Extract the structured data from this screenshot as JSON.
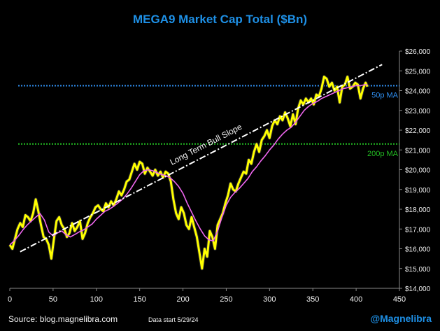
{
  "header": {
    "title": "MEGA9 Market Cap Total ($Bn)"
  },
  "footer": {
    "source": "Source: blog.magnelibra.com",
    "data_start": "Data start 5/29/24",
    "handle": "@Magnelibra"
  },
  "colors": {
    "background": "#000000",
    "price": "#ffff00",
    "price_stroke": "#2a2a2a",
    "ma50": "#ee66ee",
    "ma50_level": "#2f8ff0",
    "ma200_level": "#22bb22",
    "trend": "#ffffff",
    "axis": "#888888",
    "text": "#f2f2f2",
    "title": "#1e90e6"
  },
  "chart_data": {
    "type": "line",
    "title": "MEGA9 Market Cap Total ($Bn)",
    "xlim": [
      0,
      450
    ],
    "ylim": [
      14000,
      26000
    ],
    "x_ticks": [
      0,
      50,
      100,
      150,
      200,
      250,
      300,
      350,
      400,
      450
    ],
    "y_ticks": [
      14000,
      15000,
      16000,
      17000,
      18000,
      19000,
      20000,
      21000,
      22000,
      23000,
      24000,
      25000,
      26000
    ],
    "y_tick_labels": [
      "$14,000",
      "$15,000",
      "$16,000",
      "$17,000",
      "$18,000",
      "$19,000",
      "$20,000",
      "$21,000",
      "$22,000",
      "$23,000",
      "$24,000",
      "$25,000",
      "$26,000"
    ],
    "grid": false,
    "series": [
      {
        "x": [
          0,
          3,
          6,
          9,
          12,
          15,
          18,
          21,
          24,
          27,
          30,
          33,
          36,
          39,
          42,
          45,
          48,
          51,
          54,
          57,
          60,
          63,
          66,
          69,
          72,
          75,
          78,
          81,
          84,
          87,
          90,
          93,
          96,
          99,
          102,
          105,
          108,
          111,
          114,
          117,
          120,
          123,
          126,
          129,
          132,
          135,
          138,
          141,
          144,
          147,
          150,
          153,
          156,
          159,
          162,
          165,
          168,
          171,
          174,
          177,
          180,
          183,
          186,
          189,
          192,
          195,
          198,
          201,
          204,
          207,
          210,
          213,
          216,
          219,
          222,
          225,
          228,
          231,
          234,
          237,
          240,
          243,
          246,
          249,
          252,
          255,
          258,
          261,
          264,
          267,
          270,
          273,
          276,
          279,
          282,
          285,
          288,
          291,
          294,
          297,
          300,
          303,
          306,
          309,
          312,
          315,
          318,
          321,
          324,
          327,
          330,
          333,
          336,
          339,
          342,
          345,
          348,
          351,
          354,
          357,
          360,
          363,
          366,
          369,
          372,
          375,
          378,
          381,
          384,
          387,
          390,
          393,
          396,
          399,
          402,
          405,
          408,
          411,
          413
        ],
        "values": [
          16200,
          16000,
          16500,
          17000,
          17300,
          17100,
          17700,
          17600,
          17400,
          17800,
          18500,
          17900,
          17200,
          16600,
          16500,
          16200,
          15500,
          16500,
          17400,
          17600,
          17200,
          17000,
          16600,
          16800,
          17300,
          16900,
          17100,
          17400,
          16500,
          16800,
          17300,
          17600,
          17800,
          18100,
          18200,
          18000,
          17900,
          18300,
          18100,
          18400,
          18200,
          18500,
          18900,
          18700,
          19000,
          19400,
          19500,
          19900,
          20300,
          20000,
          20400,
          20300,
          19800,
          20100,
          19900,
          19700,
          20000,
          19700,
          19900,
          19600,
          19900,
          19800,
          19400,
          18500,
          17800,
          17500,
          18100,
          17800,
          17200,
          17000,
          17600,
          17100,
          16600,
          15800,
          15000,
          16000,
          15600,
          16900,
          16600,
          16000,
          17200,
          17500,
          17800,
          18300,
          18700,
          19300,
          19000,
          18900,
          19300,
          19600,
          19900,
          19800,
          20500,
          20300,
          20900,
          21300,
          20900,
          21500,
          21700,
          22000,
          21600,
          22200,
          22500,
          22300,
          22700,
          22500,
          22900,
          22600,
          22200,
          22800,
          22300,
          23100,
          23500,
          23300,
          23600,
          23400,
          23600,
          23300,
          23800,
          23700,
          24100,
          24700,
          24600,
          24200,
          24400,
          24000,
          24200,
          23400,
          24200,
          24300,
          24700,
          24100,
          24200,
          24400,
          24300,
          23600,
          24100,
          24400,
          24200
        ],
        "color": "#ffff00"
      },
      {
        "x": [
          0,
          5,
          10,
          15,
          20,
          25,
          30,
          35,
          40,
          45,
          50,
          55,
          60,
          65,
          70,
          75,
          80,
          85,
          90,
          95,
          100,
          105,
          110,
          115,
          120,
          125,
          130,
          135,
          140,
          145,
          150,
          155,
          160,
          165,
          170,
          175,
          180,
          185,
          190,
          195,
          200,
          205,
          210,
          215,
          220,
          225,
          230,
          235,
          240,
          245,
          250,
          255,
          260,
          265,
          270,
          275,
          280,
          285,
          290,
          295,
          300,
          305,
          310,
          315,
          320,
          325,
          330,
          335,
          340,
          345,
          350,
          355,
          360,
          365,
          370,
          375,
          380,
          385,
          390,
          395,
          400,
          405,
          410,
          413
        ],
        "values": [
          16200,
          16400,
          16650,
          16950,
          17200,
          17400,
          17600,
          17780,
          17450,
          16850,
          16650,
          16800,
          16900,
          16700,
          16600,
          16720,
          16850,
          16950,
          17100,
          17250,
          17500,
          17700,
          17900,
          18000,
          18150,
          18320,
          18500,
          18750,
          19050,
          19400,
          19750,
          19950,
          20000,
          19950,
          19850,
          19760,
          19700,
          19600,
          19400,
          19150,
          18800,
          18300,
          17850,
          17400,
          17000,
          16650,
          16450,
          16400,
          16900,
          17600,
          18200,
          18600,
          18850,
          19050,
          19300,
          19550,
          19900,
          20150,
          20450,
          20700,
          21000,
          21250,
          21550,
          21800,
          22000,
          22150,
          22400,
          22700,
          23000,
          23200,
          23350,
          23450,
          23600,
          23700,
          23800,
          23900,
          24000,
          24100,
          24150,
          24200,
          24250,
          24250,
          24300,
          24300
        ],
        "color": "#ee66ee"
      }
    ],
    "reference_lines": [
      {
        "label": "50p MA",
        "y": 24250,
        "style": "dotted",
        "color": "#2f8ff0"
      },
      {
        "label": "200p MA",
        "y": 21300,
        "style": "dotted",
        "color": "#22bb22"
      }
    ],
    "trend_line": {
      "label": "Long Term Bull Slope",
      "from": [
        12,
        15850
      ],
      "to": [
        430,
        25320
      ],
      "style": "dashdot",
      "color": "#ffffff"
    }
  }
}
